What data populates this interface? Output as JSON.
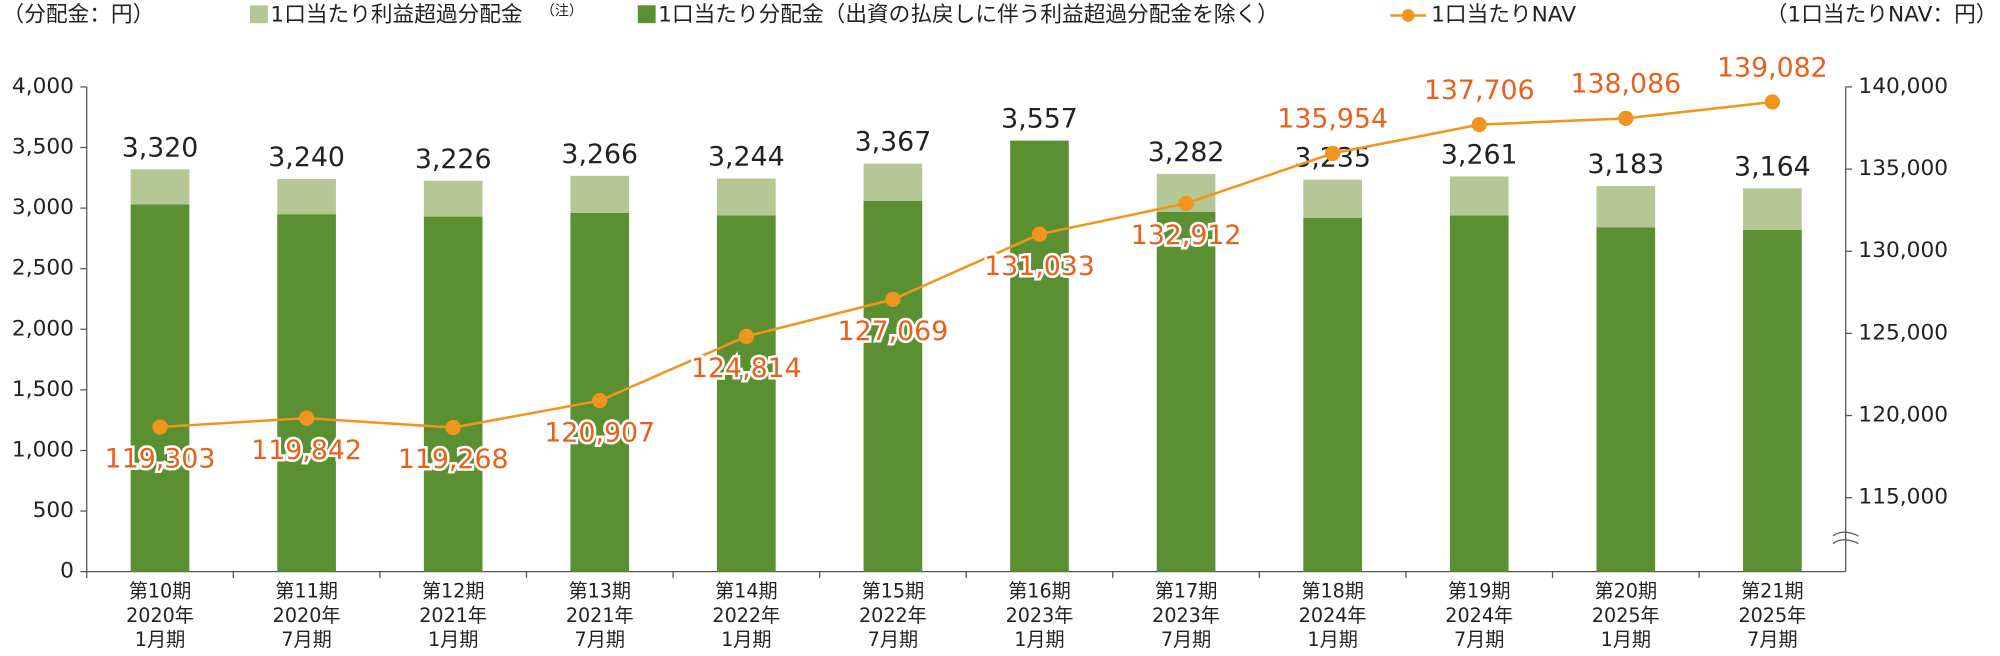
{
  "chart_data": {
    "type": "bar-line",
    "y_label": "（分配金：円）",
    "y2_label": "（1口当たりNAV：円）",
    "categories": [
      [
        "第10期",
        "2020年",
        "1月期"
      ],
      [
        "第11期",
        "2020年",
        "7月期"
      ],
      [
        "第12期",
        "2021年",
        "1月期"
      ],
      [
        "第13期",
        "2021年",
        "7月期"
      ],
      [
        "第14期",
        "2022年",
        "1月期"
      ],
      [
        "第15期",
        "2022年",
        "7月期"
      ],
      [
        "第16期",
        "2023年",
        "1月期"
      ],
      [
        "第17期",
        "2023年",
        "7月期"
      ],
      [
        "第18期",
        "2024年",
        "1月期"
      ],
      [
        "第19期",
        "2024年",
        "7月期"
      ],
      [
        "第20期",
        "2025年",
        "1月期"
      ],
      [
        "第21期",
        "2025年",
        "7月期"
      ]
    ],
    "series": [
      {
        "name": "1口当たり分配金（出資の払戻しに伴う利益超過分配金を除く）",
        "color": "#5a8f32",
        "values": [
          3030,
          2950,
          2930,
          2960,
          2940,
          3060,
          3557,
          2970,
          2920,
          2940,
          2840,
          2820
        ]
      },
      {
        "name": "1口当たり利益超過分配金",
        "name_note": "（注）",
        "color": "#b5c795",
        "values": [
          290,
          290,
          296,
          306,
          304,
          307,
          0,
          312,
          315,
          321,
          343,
          344
        ]
      },
      {
        "name": "1口当たりNAV",
        "color": "#f0961e",
        "axis": "y2",
        "values": [
          119303,
          119842,
          119268,
          120907,
          124814,
          127069,
          131033,
          132912,
          135954,
          137706,
          138086,
          139082
        ],
        "value_labels": [
          "119,303",
          "119,842",
          "119,268",
          "120,907",
          "124,814",
          "127,069",
          "131,033",
          "132,912",
          "135,954",
          "137,706",
          "138,086",
          "139,082"
        ]
      }
    ],
    "totals": [
      3320,
      3240,
      3226,
      3266,
      3244,
      3367,
      3557,
      3282,
      3235,
      3261,
      3183,
      3164
    ],
    "total_labels": [
      "3,320",
      "3,240",
      "3,226",
      "3,266",
      "3,244",
      "3,367",
      "3,557",
      "3,282",
      "3,235",
      "3,261",
      "3,183",
      "3,164"
    ],
    "ylim": [
      0,
      4000
    ],
    "yticks": [
      0,
      500,
      {
        "value": 1000,
        "label": "1,000"
      },
      {
        "value": 1500,
        "label": "1,500"
      },
      {
        "value": 2000,
        "label": "2,000"
      },
      {
        "value": 2500,
        "label": "2,500"
      },
      {
        "value": 3000,
        "label": "3,000"
      },
      {
        "value": 3500,
        "label": "3,500"
      },
      {
        "value": 4000,
        "label": "4,000"
      }
    ],
    "y2lim": [
      110500,
      140000
    ],
    "y2ticks": [
      {
        "value": 115000,
        "label": "115,000"
      },
      {
        "value": 120000,
        "label": "120,000"
      },
      {
        "value": 125000,
        "label": "125,000"
      },
      {
        "value": 130000,
        "label": "130,000"
      },
      {
        "value": 135000,
        "label": "135,000"
      },
      {
        "value": 140000,
        "label": "140,000"
      }
    ]
  }
}
